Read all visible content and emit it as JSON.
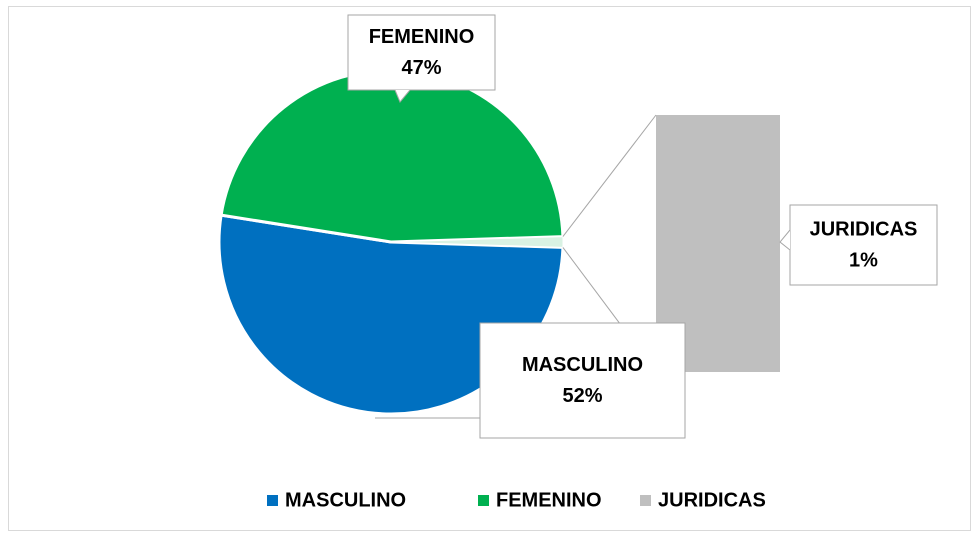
{
  "chart_data": {
    "type": "pie",
    "categories": [
      "MASCULINO",
      "FEMENINO",
      "JURIDICAS"
    ],
    "values": [
      52,
      47,
      1
    ],
    "value_labels": [
      "52%",
      "47%",
      "1%"
    ],
    "colors": [
      "#0070c0",
      "#00b050",
      "#bfbfbf"
    ],
    "legend": "bottom"
  }
}
